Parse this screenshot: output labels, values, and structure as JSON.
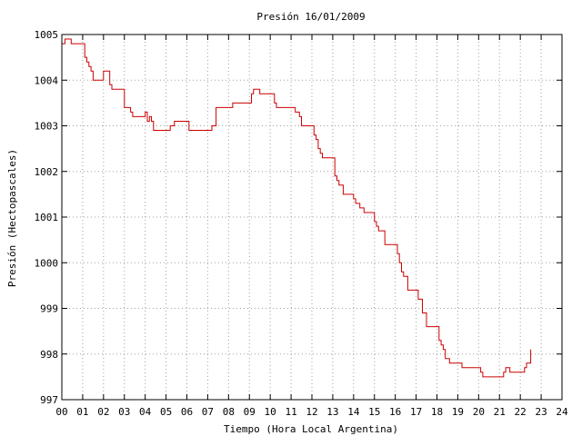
{
  "chart_data": {
    "type": "line",
    "title": "Presión 16/01/2009",
    "xlabel": "Tiempo (Hora Local Argentina)",
    "ylabel": "Presión (Hectopascales)",
    "xlim": [
      0,
      24
    ],
    "ylim": [
      997,
      1005
    ],
    "x_ticks": [
      "00",
      "01",
      "02",
      "03",
      "04",
      "05",
      "06",
      "07",
      "08",
      "09",
      "10",
      "11",
      "12",
      "13",
      "14",
      "15",
      "16",
      "17",
      "18",
      "19",
      "20",
      "21",
      "22",
      "23",
      "24"
    ],
    "y_ticks": [
      997,
      998,
      999,
      1000,
      1001,
      1002,
      1003,
      1004,
      1005
    ],
    "grid": true,
    "legend": "none",
    "colors": {
      "line": "#cc0000",
      "grid": "#a0a0a0",
      "frame": "#000000"
    },
    "series": [
      {
        "x": [
          0.0,
          0.15,
          0.3,
          0.45,
          0.5,
          1.05,
          1.1,
          1.2,
          1.3,
          1.4,
          1.5,
          2.0,
          2.1,
          2.3,
          2.4,
          2.5,
          3.0,
          3.1,
          3.3,
          3.4,
          3.6,
          4.0,
          4.1,
          4.2,
          4.3,
          4.4,
          4.5,
          5.0,
          5.2,
          5.4,
          6.0,
          6.1,
          7.0,
          7.2,
          7.4,
          8.0,
          8.2,
          9.0,
          9.1,
          9.2,
          9.5,
          10.0,
          10.2,
          10.3,
          11.0,
          11.2,
          11.4,
          11.5,
          12.0,
          12.1,
          12.2,
          12.3,
          12.4,
          12.5,
          13.0,
          13.1,
          13.2,
          13.3,
          13.5,
          13.7,
          14.0,
          14.1,
          14.2,
          14.3,
          14.5,
          14.7,
          15.0,
          15.1,
          15.2,
          15.3,
          15.5,
          16.0,
          16.1,
          16.2,
          16.3,
          16.4,
          16.6,
          17.0,
          17.1,
          17.3,
          17.5,
          18.0,
          18.1,
          18.2,
          18.3,
          18.4,
          18.6,
          19.0,
          19.2,
          19.6,
          20.0,
          20.1,
          20.2,
          20.5,
          20.9,
          21.2,
          21.3,
          21.5,
          22.0,
          22.2,
          22.3,
          22.5
        ],
        "y": [
          1004.8,
          1004.9,
          1004.9,
          1004.8,
          1004.8,
          1004.8,
          1004.5,
          1004.4,
          1004.3,
          1004.2,
          1004.0,
          1004.2,
          1004.2,
          1003.9,
          1003.8,
          1003.8,
          1003.4,
          1003.4,
          1003.3,
          1003.2,
          1003.2,
          1003.3,
          1003.1,
          1003.2,
          1003.1,
          1002.9,
          1002.9,
          1002.9,
          1003.0,
          1003.1,
          1003.1,
          1002.9,
          1002.9,
          1003.0,
          1003.4,
          1003.4,
          1003.5,
          1003.5,
          1003.7,
          1003.8,
          1003.7,
          1003.7,
          1003.5,
          1003.4,
          1003.4,
          1003.3,
          1003.2,
          1003.0,
          1003.0,
          1002.8,
          1002.7,
          1002.5,
          1002.4,
          1002.3,
          1002.3,
          1001.9,
          1001.8,
          1001.7,
          1001.5,
          1001.5,
          1001.4,
          1001.3,
          1001.3,
          1001.2,
          1001.1,
          1001.1,
          1000.9,
          1000.8,
          1000.7,
          1000.7,
          1000.4,
          1000.4,
          1000.2,
          1000.0,
          999.8,
          999.7,
          999.4,
          999.4,
          999.2,
          998.9,
          998.6,
          998.6,
          998.3,
          998.2,
          998.1,
          997.9,
          997.8,
          997.8,
          997.7,
          997.7,
          997.7,
          997.6,
          997.5,
          997.5,
          997.5,
          997.6,
          997.7,
          997.6,
          997.6,
          997.7,
          997.8,
          998.1
        ]
      }
    ]
  }
}
